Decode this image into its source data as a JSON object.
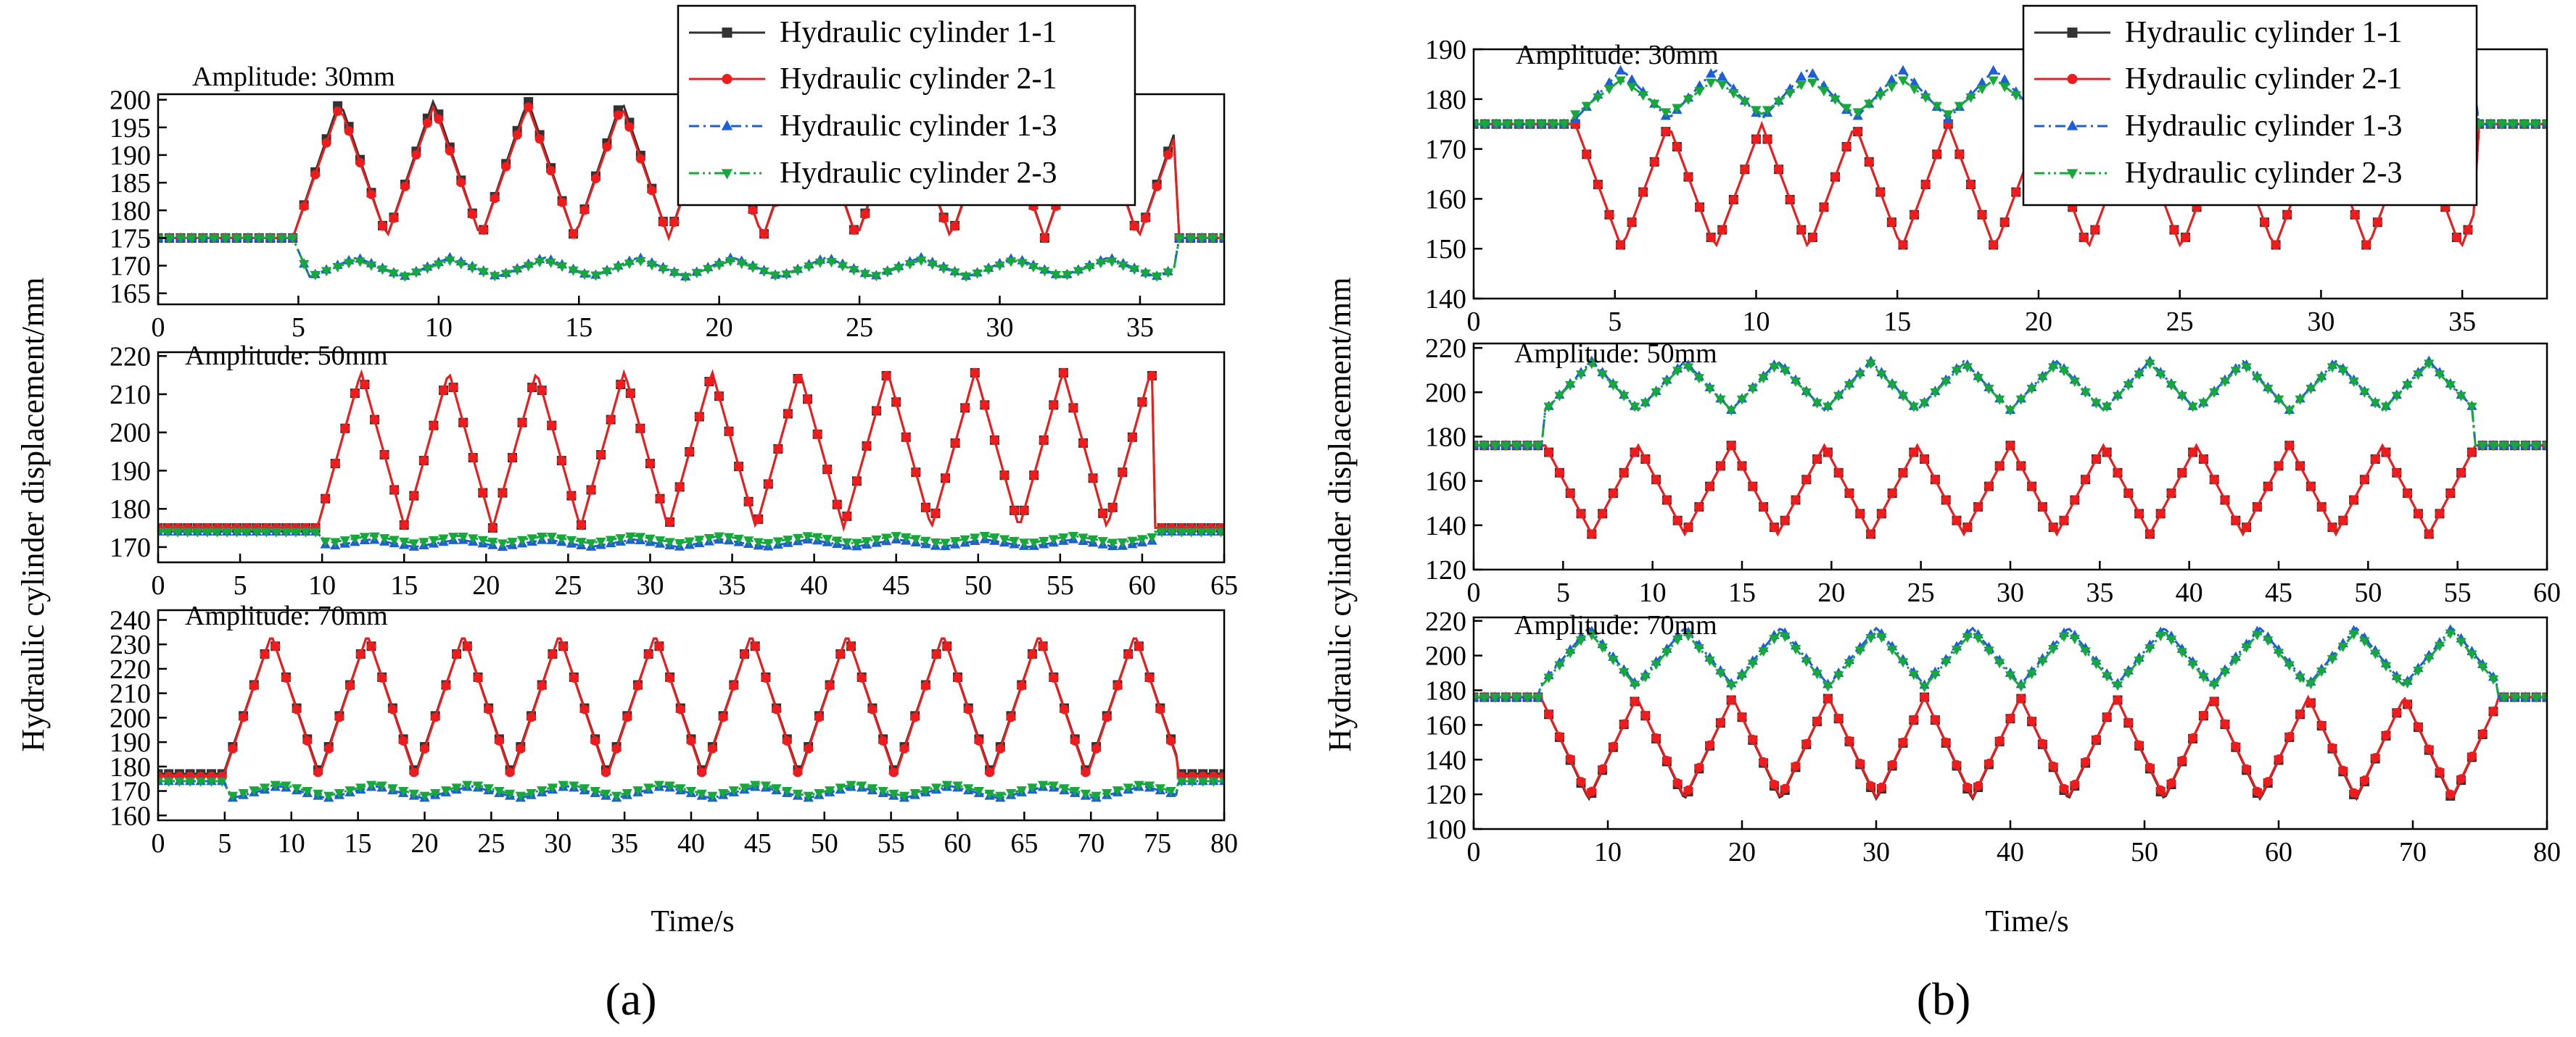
{
  "figure": {
    "y_axis_title": "Hydraulic cylinder displacement/mm",
    "x_axis_title": "Time/s",
    "series_styles": [
      {
        "name": "Hydraulic cylinder 1-1",
        "color": "#333333",
        "marker": "square",
        "dash": "solid"
      },
      {
        "name": "Hydraulic cylinder 2-1",
        "color": "#ee1c1c",
        "marker": "circle",
        "dash": "solid"
      },
      {
        "name": "Hydraulic cylinder 1-3",
        "color": "#1f5fd6",
        "marker": "triangle-up",
        "dash": "dash-dot"
      },
      {
        "name": "Hydraulic cylinder 2-3",
        "color": "#16a83a",
        "marker": "triangle-down",
        "dash": "dash-dot-dot"
      }
    ],
    "panel_a_label": "(a)",
    "panel_b_label": "(b)"
  },
  "panel_a_legend": [
    "Hydraulic cylinder 1-1",
    "Hydraulic cylinder 2-1",
    "Hydraulic cylinder 1-3",
    "Hydraulic cylinder 2-3"
  ],
  "panel_b_legend": [
    "Hydraulic cylinder 1-1",
    "Hydraulic cylinder 2-1",
    "Hydraulic cylinder 1-3",
    "Hydraulic cylinder 2-3"
  ],
  "chart_data": [
    {
      "type": "line",
      "panel": "a",
      "title": "Amplitude: 30mm",
      "xlim": [
        0,
        38
      ],
      "xticks": [
        0,
        5,
        10,
        15,
        20,
        25,
        30,
        35
      ],
      "ylim": [
        163,
        201
      ],
      "yticks": [
        165,
        170,
        175,
        180,
        185,
        190,
        195,
        200
      ],
      "motion": {
        "start": 4.8,
        "end": 36.2,
        "period": 3.35
      },
      "series": [
        {
          "name": "Hydraulic cylinder 1-1",
          "base": 175,
          "peak": 200,
          "trough": 175,
          "start_phase": "rise"
        },
        {
          "name": "Hydraulic cylinder 2-1",
          "base": 175,
          "peak": 199,
          "trough": 175,
          "start_phase": "rise"
        },
        {
          "name": "Hydraulic cylinder 1-3",
          "base": 175,
          "peak": 171.5,
          "trough": 168,
          "start_phase": "drop"
        },
        {
          "name": "Hydraulic cylinder 2-3",
          "base": 175,
          "peak": 171,
          "trough": 168,
          "start_phase": "drop"
        }
      ]
    },
    {
      "type": "line",
      "panel": "a",
      "title": "Amplitude: 50mm",
      "xlim": [
        0,
        65
      ],
      "xticks": [
        0,
        5,
        10,
        15,
        20,
        25,
        30,
        35,
        40,
        45,
        50,
        55,
        60,
        65
      ],
      "ylim": [
        166,
        221
      ],
      "yticks": [
        170,
        180,
        190,
        200,
        210,
        220
      ],
      "motion": {
        "start": 9.7,
        "end": 60.8,
        "period": 5.35
      },
      "series": [
        {
          "name": "Hydraulic cylinder 1-1",
          "base": 175,
          "peak": 216,
          "trough": 175,
          "start_phase": "rise"
        },
        {
          "name": "Hydraulic cylinder 2-1",
          "base": 175,
          "peak": 216,
          "trough": 175,
          "start_phase": "rise"
        },
        {
          "name": "Hydraulic cylinder 1-3",
          "base": 174,
          "peak": 172,
          "trough": 170,
          "start_phase": "drop"
        },
        {
          "name": "Hydraulic cylinder 2-3",
          "base": 174,
          "peak": 173,
          "trough": 171,
          "start_phase": "drop"
        }
      ]
    },
    {
      "type": "line",
      "panel": "a",
      "title": "Amplitude: 70mm",
      "xlim": [
        0,
        80
      ],
      "xticks": [
        0,
        5,
        10,
        15,
        20,
        25,
        30,
        35,
        40,
        45,
        50,
        55,
        60,
        65,
        70,
        75,
        80
      ],
      "ylim": [
        158,
        244
      ],
      "yticks": [
        160,
        170,
        180,
        190,
        200,
        210,
        220,
        230,
        240
      ],
      "motion": {
        "start": 4.9,
        "end": 76.5,
        "period": 7.2
      },
      "series": [
        {
          "name": "Hydraulic cylinder 1-1",
          "base": 177,
          "peak": 234,
          "trough": 177,
          "start_phase": "rise"
        },
        {
          "name": "Hydraulic cylinder 2-1",
          "base": 176,
          "peak": 234,
          "trough": 176,
          "start_phase": "rise"
        },
        {
          "name": "Hydraulic cylinder 1-3",
          "base": 174,
          "peak": 172,
          "trough": 167,
          "start_phase": "drop"
        },
        {
          "name": "Hydraulic cylinder 2-3",
          "base": 174,
          "peak": 173,
          "trough": 168,
          "start_phase": "drop"
        }
      ]
    },
    {
      "type": "line",
      "panel": "b",
      "title": "Amplitude: 30mm",
      "xlim": [
        0,
        38
      ],
      "xticks": [
        0,
        5,
        10,
        15,
        20,
        25,
        30,
        35
      ],
      "ylim": [
        140,
        190
      ],
      "yticks": [
        140,
        150,
        160,
        170,
        180,
        190
      ],
      "motion": {
        "start": 3.6,
        "end": 35.5,
        "period": 3.3
      },
      "series": [
        {
          "name": "Hydraulic cylinder 1-1",
          "base": 175,
          "peak": 175,
          "trough": 150,
          "start_phase": "fall"
        },
        {
          "name": "Hydraulic cylinder 2-1",
          "base": 175,
          "peak": 175,
          "trough": 150,
          "start_phase": "fall"
        },
        {
          "name": "Hydraulic cylinder 1-3",
          "base": 175,
          "peak": 186,
          "trough": 176,
          "start_phase": "rise"
        },
        {
          "name": "Hydraulic cylinder 2-3",
          "base": 175,
          "peak": 184,
          "trough": 177,
          "start_phase": "rise"
        }
      ]
    },
    {
      "type": "line",
      "panel": "b",
      "title": "Amplitude: 50mm",
      "xlim": [
        0,
        60
      ],
      "xticks": [
        0,
        5,
        10,
        15,
        20,
        25,
        30,
        35,
        40,
        45,
        50,
        55,
        60
      ],
      "ylim": [
        120,
        222
      ],
      "yticks": [
        120,
        140,
        160,
        180,
        200,
        220
      ],
      "motion": {
        "start": 4.0,
        "end": 56.0,
        "period": 5.2
      },
      "series": [
        {
          "name": "Hydraulic cylinder 1-1",
          "base": 176,
          "peak": 176,
          "trough": 136,
          "start_phase": "fall"
        },
        {
          "name": "Hydraulic cylinder 2-1",
          "base": 176,
          "peak": 176,
          "trough": 136,
          "start_phase": "fall"
        },
        {
          "name": "Hydraulic cylinder 1-3",
          "base": 176,
          "peak": 214,
          "trough": 192,
          "start_phase": "rise"
        },
        {
          "name": "Hydraulic cylinder 2-3",
          "base": 176,
          "peak": 213,
          "trough": 192,
          "start_phase": "rise"
        }
      ]
    },
    {
      "type": "line",
      "panel": "b",
      "title": "Amplitude: 70mm",
      "xlim": [
        0,
        80
      ],
      "xticks": [
        0,
        10,
        20,
        30,
        40,
        50,
        60,
        70,
        80
      ],
      "ylim": [
        100,
        222
      ],
      "yticks": [
        100,
        120,
        140,
        160,
        180,
        200,
        220
      ],
      "motion": {
        "start": 5.0,
        "end": 76.3,
        "period": 7.15
      },
      "series": [
        {
          "name": "Hydraulic cylinder 1-1",
          "base": 176,
          "peak": 176,
          "trough": 117,
          "start_phase": "fall"
        },
        {
          "name": "Hydraulic cylinder 2-1",
          "base": 176,
          "peak": 176,
          "trough": 118,
          "start_phase": "fall"
        },
        {
          "name": "Hydraulic cylinder 1-3",
          "base": 176,
          "peak": 216,
          "trough": 183,
          "start_phase": "rise"
        },
        {
          "name": "Hydraulic cylinder 2-3",
          "base": 176,
          "peak": 214,
          "trough": 182,
          "start_phase": "rise"
        }
      ]
    }
  ]
}
